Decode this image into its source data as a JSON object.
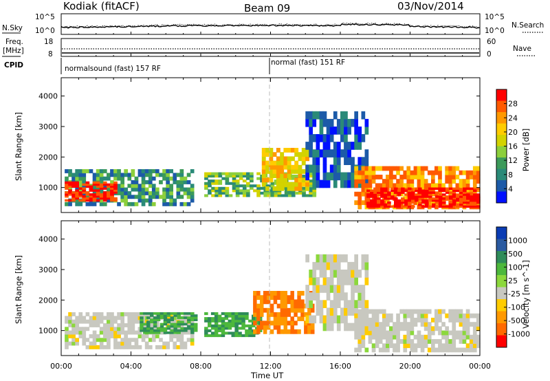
{
  "header": {
    "station": "Kodiak (fitACF)",
    "beam": "Beam 09",
    "date": "03/Nov/2014"
  },
  "top_panels": {
    "nsky_label": "N.Sky",
    "nsearch_label": "N.Search",
    "nsky_ticks": [
      "10^5",
      "10^0"
    ],
    "nsearch_ticks": [
      "10^5",
      "10^0"
    ],
    "freq_label_1": "Freq.",
    "freq_label_2": "[MHz]",
    "freq_ticks": [
      "18",
      "8"
    ],
    "nave_label": "Nave",
    "nave_ticks": [
      "60",
      "0"
    ],
    "cpid_label": "CPID",
    "cpid_segments": [
      {
        "text": "normalsound (fast) 157 RF",
        "start_hour": 0
      },
      {
        "text": "normal (fast) 151 RF",
        "start_hour": 12
      }
    ]
  },
  "colorbars": {
    "power": {
      "label": "Power [dB]",
      "ticks": [
        "28",
        "24",
        "20",
        "16",
        "12",
        "8",
        "4"
      ],
      "colors": [
        "#ff0000",
        "#ff5a00",
        "#ff9900",
        "#ffcc00",
        "#d3d300",
        "#8ccf3c",
        "#3c9a5a",
        "#2a8a78",
        "#1c5aa8",
        "#0010ff"
      ]
    },
    "velocity": {
      "label": "Velocity [m s^-1]",
      "ticks": [
        "1000",
        "500",
        "100",
        "25",
        "-25",
        "-100",
        "-500",
        "-1000"
      ],
      "colors": [
        "#0a3cb4",
        "#2a5aa0",
        "#2f8c5a",
        "#4db83c",
        "#8cd83c",
        "#c8c8c0",
        "#ffcc00",
        "#ff9900",
        "#ff6a00",
        "#ff0000"
      ]
    }
  },
  "chart_data": [
    {
      "type": "heatmap",
      "title": "",
      "xlabel": "Time UT",
      "ylabel": "Slant Range [km]",
      "xlim": [
        0,
        24
      ],
      "ylim": [
        180,
        4600
      ],
      "xticks": [
        "00:00",
        "04:00",
        "08:00",
        "12:00",
        "16:00",
        "20:00",
        "00:00"
      ],
      "yticks": [
        "1000",
        "2000",
        "3000",
        "4000"
      ],
      "quantity": "power",
      "regions": [
        {
          "t0": 0.2,
          "t1": 7.6,
          "r0": 400,
          "r1": 1600,
          "level": 12
        },
        {
          "t0": 0.2,
          "t1": 3.2,
          "r0": 550,
          "r1": 1200,
          "level": 28
        },
        {
          "t0": 8.2,
          "t1": 14.6,
          "r0": 700,
          "r1": 1500,
          "level": 14
        },
        {
          "t0": 11.5,
          "t1": 14.2,
          "r0": 900,
          "r1": 2300,
          "level": 20
        },
        {
          "t0": 14.0,
          "t1": 17.6,
          "r0": 1000,
          "r1": 3500,
          "level": 8
        },
        {
          "t0": 16.8,
          "t1": 24.0,
          "r0": 300,
          "r1": 1700,
          "level": 24
        },
        {
          "t0": 17.5,
          "t1": 24.0,
          "r0": 350,
          "r1": 1000,
          "level": 30
        }
      ]
    },
    {
      "type": "heatmap",
      "title": "",
      "xlabel": "Time UT",
      "ylabel": "Slant Range [km]",
      "xlim": [
        0,
        24
      ],
      "ylim": [
        180,
        4600
      ],
      "xticks": [
        "00:00",
        "04:00",
        "08:00",
        "12:00",
        "16:00",
        "20:00",
        "00:00"
      ],
      "yticks": [
        "1000",
        "2000",
        "3000",
        "4000"
      ],
      "quantity": "velocity",
      "regions": [
        {
          "t0": 0.2,
          "t1": 7.6,
          "r0": 400,
          "r1": 1600,
          "level": 0
        },
        {
          "t0": 4.5,
          "t1": 7.8,
          "r0": 900,
          "r1": 1600,
          "level": 100
        },
        {
          "t0": 8.2,
          "t1": 11.5,
          "r0": 800,
          "r1": 1600,
          "level": 100
        },
        {
          "t0": 11.0,
          "t1": 14.5,
          "r0": 900,
          "r1": 2300,
          "level": -300
        },
        {
          "t0": 14.0,
          "t1": 17.6,
          "r0": 1000,
          "r1": 3500,
          "level": 0
        },
        {
          "t0": 16.8,
          "t1": 24.0,
          "r0": 300,
          "r1": 1700,
          "level": 0
        }
      ]
    }
  ]
}
